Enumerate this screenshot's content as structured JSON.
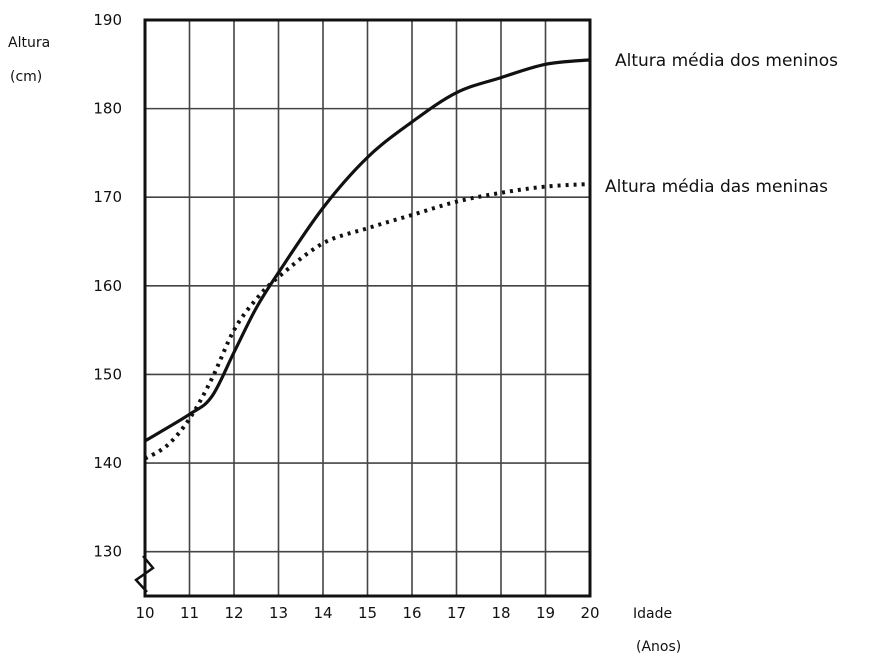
{
  "chart_data": {
    "type": "line",
    "ylabel": "Altura",
    "yunit": "(cm)",
    "xlabel": "Idade",
    "xunit": "(Anos)",
    "xlim": [
      10,
      20
    ],
    "ylim": [
      125,
      190
    ],
    "x_ticks": [
      10,
      11,
      12,
      13,
      14,
      15,
      16,
      17,
      18,
      19,
      20
    ],
    "y_ticks": [
      130,
      140,
      150,
      160,
      170,
      180,
      190
    ],
    "y_axis_break": true,
    "grid": true,
    "series": [
      {
        "name": "Altura média dos meninos",
        "style": "solid",
        "color": "#111111",
        "x": [
          10,
          11,
          11.5,
          12,
          12.5,
          13,
          14,
          15,
          16,
          17,
          18,
          19,
          20
        ],
        "values": [
          142.5,
          145.5,
          147.5,
          152.5,
          157.5,
          161.5,
          168.8,
          174.5,
          178.5,
          181.8,
          183.5,
          185,
          185.5
        ]
      },
      {
        "name": "Altura média das meninas",
        "style": "dotted",
        "color": "#111111",
        "x": [
          10,
          10.5,
          11,
          11.5,
          12,
          12.5,
          13,
          14,
          15,
          16,
          17,
          18,
          19,
          20
        ],
        "values": [
          140.5,
          142,
          145,
          149.5,
          155,
          158.5,
          161,
          164.8,
          166.5,
          168,
          169.5,
          170.5,
          171.2,
          171.5
        ]
      }
    ]
  }
}
